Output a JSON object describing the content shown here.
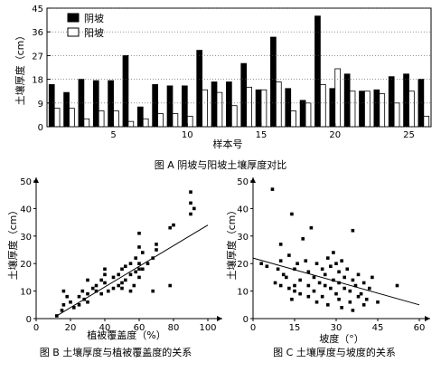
{
  "chart_data": [
    {
      "type": "bar",
      "title": "",
      "caption": "图 A 阴坡与阳坡土壤厚度对比",
      "xlabel": "样本号",
      "ylabel": "土壤厚度（cm）",
      "ylim": [
        0,
        45
      ],
      "yticks": [
        "0",
        "9",
        "18",
        "27",
        "36",
        "45"
      ],
      "xticks": [
        "5",
        "10",
        "15",
        "20",
        "25"
      ],
      "xtick_values": [
        5,
        10,
        15,
        20,
        25
      ],
      "legend": "top-left",
      "categories": [
        1,
        2,
        3,
        4,
        5,
        6,
        7,
        8,
        9,
        10,
        11,
        12,
        13,
        14,
        15,
        16,
        17,
        18,
        19,
        20,
        21,
        22,
        23,
        24,
        25,
        26
      ],
      "series": [
        {
          "name": "阴坡",
          "color": "#000000",
          "values": [
            16,
            13,
            18,
            17.5,
            17.5,
            27,
            7.5,
            16,
            15.5,
            15.5,
            29,
            17,
            17,
            24,
            14,
            34,
            14.5,
            10,
            42,
            14.5,
            20,
            13.5,
            14,
            19,
            20,
            18
          ]
        },
        {
          "name": "阳坡",
          "color": "#ffffff",
          "values": [
            7,
            7,
            3,
            6,
            6,
            2,
            3,
            5,
            5,
            4,
            14,
            13,
            8,
            15,
            14,
            17,
            6,
            9,
            16,
            22,
            13.5,
            13.5,
            12.5,
            9,
            13.5,
            4
          ]
        }
      ]
    },
    {
      "type": "scatter",
      "title": "",
      "caption": "图 B 土壤厚度与植被覆盖度的关系",
      "xlabel": "植被覆盖度（%）",
      "ylabel": "土壤厚度（cm）",
      "xlim": [
        0,
        100
      ],
      "ylim": [
        0,
        50
      ],
      "xticks": [
        "0",
        "20",
        "40",
        "60",
        "80",
        "100"
      ],
      "yticks": [
        "0",
        "10",
        "20",
        "30",
        "40",
        "50"
      ],
      "trendline": [
        [
          12,
          1
        ],
        [
          100,
          34
        ]
      ],
      "points": [
        [
          12,
          1
        ],
        [
          15,
          3
        ],
        [
          16,
          5
        ],
        [
          16,
          10
        ],
        [
          18,
          8
        ],
        [
          20,
          6
        ],
        [
          22,
          4
        ],
        [
          25,
          5
        ],
        [
          25,
          8
        ],
        [
          27,
          10
        ],
        [
          28,
          7
        ],
        [
          30,
          14
        ],
        [
          30,
          6
        ],
        [
          30,
          9
        ],
        [
          33,
          11
        ],
        [
          35,
          10
        ],
        [
          35,
          12
        ],
        [
          38,
          9
        ],
        [
          38,
          14
        ],
        [
          40,
          13
        ],
        [
          40,
          16
        ],
        [
          40,
          18
        ],
        [
          42,
          10
        ],
        [
          45,
          11
        ],
        [
          45,
          15
        ],
        [
          48,
          12
        ],
        [
          48,
          16
        ],
        [
          50,
          13
        ],
        [
          50,
          18
        ],
        [
          50,
          11
        ],
        [
          52,
          14
        ],
        [
          52,
          19
        ],
        [
          55,
          10
        ],
        [
          55,
          16
        ],
        [
          55,
          20
        ],
        [
          57,
          12
        ],
        [
          58,
          17
        ],
        [
          58,
          22
        ],
        [
          60,
          15
        ],
        [
          60,
          18
        ],
        [
          60,
          20
        ],
        [
          60,
          26
        ],
        [
          60,
          31
        ],
        [
          62,
          18
        ],
        [
          62,
          24
        ],
        [
          65,
          20
        ],
        [
          68,
          10
        ],
        [
          68,
          22
        ],
        [
          70,
          25
        ],
        [
          70,
          27
        ],
        [
          78,
          12
        ],
        [
          78,
          33
        ],
        [
          80,
          34
        ],
        [
          90,
          38
        ],
        [
          90,
          42
        ],
        [
          90,
          46
        ],
        [
          92,
          40
        ]
      ]
    },
    {
      "type": "scatter",
      "title": "",
      "caption": "图 C 土壤厚度与坡度的关系",
      "xlabel": "坡度（°）",
      "ylabel": "土壤厚度（cm）",
      "xlim": [
        0,
        60
      ],
      "ylim": [
        0,
        50
      ],
      "xticks": [
        "0",
        "15",
        "30",
        "45",
        "60"
      ],
      "yticks": [
        "0",
        "10",
        "20",
        "30",
        "40",
        "50"
      ],
      "trendline": [
        [
          0,
          22
        ],
        [
          60,
          5
        ]
      ],
      "points": [
        [
          3,
          20
        ],
        [
          5,
          19
        ],
        [
          7,
          47
        ],
        [
          8,
          13
        ],
        [
          9,
          18
        ],
        [
          10,
          21
        ],
        [
          10,
          27
        ],
        [
          10,
          12
        ],
        [
          11,
          16
        ],
        [
          12,
          15
        ],
        [
          13,
          11
        ],
        [
          13,
          23
        ],
        [
          14,
          38
        ],
        [
          14,
          7
        ],
        [
          15,
          18
        ],
        [
          15,
          12
        ],
        [
          15,
          10
        ],
        [
          16,
          20
        ],
        [
          17,
          14
        ],
        [
          17,
          9
        ],
        [
          18,
          29
        ],
        [
          19,
          21
        ],
        [
          20,
          17
        ],
        [
          20,
          12
        ],
        [
          20,
          8
        ],
        [
          21,
          33
        ],
        [
          22,
          15
        ],
        [
          22,
          10
        ],
        [
          23,
          20
        ],
        [
          23,
          6
        ],
        [
          24,
          13
        ],
        [
          25,
          18
        ],
        [
          25,
          8
        ],
        [
          26,
          16
        ],
        [
          26,
          12
        ],
        [
          27,
          22
        ],
        [
          27,
          5
        ],
        [
          28,
          19
        ],
        [
          28,
          11
        ],
        [
          29,
          14
        ],
        [
          29,
          24
        ],
        [
          30,
          20
        ],
        [
          30,
          9
        ],
        [
          31,
          17
        ],
        [
          31,
          13
        ],
        [
          31,
          7
        ],
        [
          32,
          21
        ],
        [
          32,
          4
        ],
        [
          33,
          15
        ],
        [
          33,
          11
        ],
        [
          34,
          18
        ],
        [
          35,
          10
        ],
        [
          35,
          6
        ],
        [
          36,
          14
        ],
        [
          36,
          3
        ],
        [
          37,
          12
        ],
        [
          38,
          8
        ],
        [
          38,
          16
        ],
        [
          39,
          9
        ],
        [
          40,
          5
        ],
        [
          40,
          13
        ],
        [
          41,
          7
        ],
        [
          42,
          11
        ],
        [
          43,
          15
        ],
        [
          45,
          6
        ],
        [
          52,
          12
        ],
        [
          36,
          32
        ]
      ]
    }
  ]
}
